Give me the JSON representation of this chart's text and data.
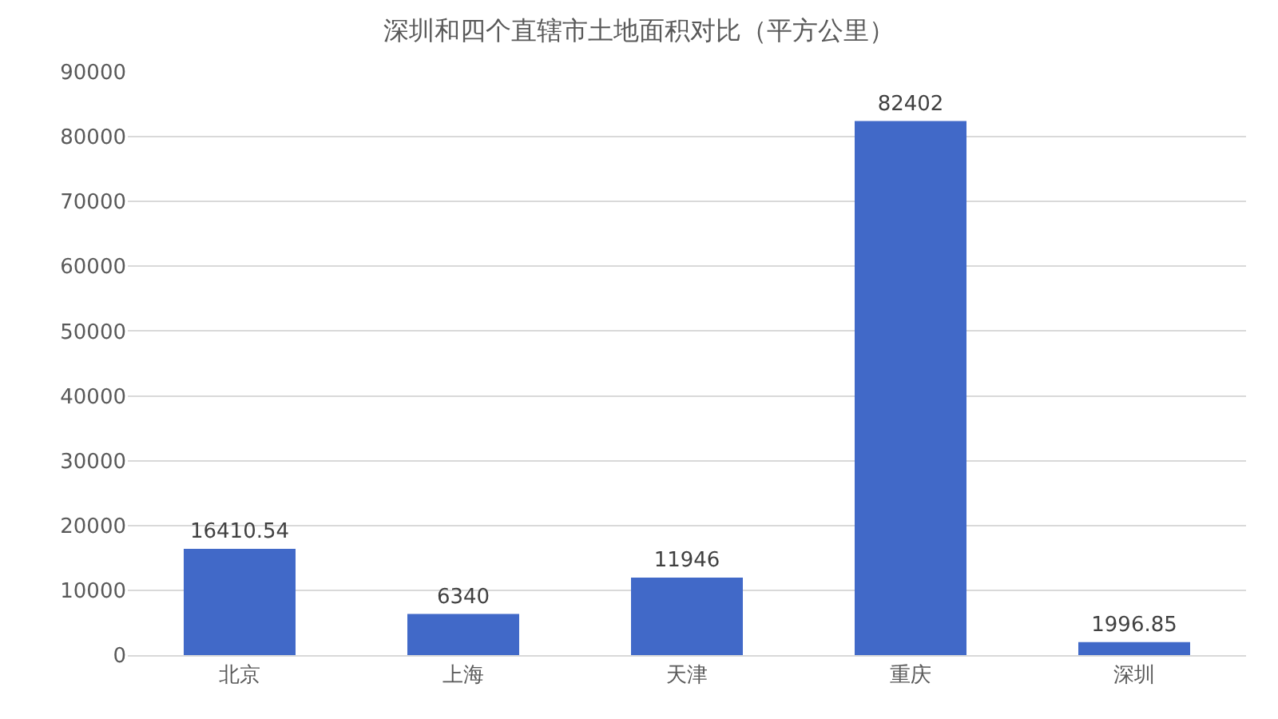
{
  "chart_data": {
    "type": "bar",
    "title": "深圳和四个直辖市土地面积对比（平方公里）",
    "categories": [
      "北京",
      "上海",
      "天津",
      "重庆",
      "深圳"
    ],
    "values": [
      16410.54,
      6340,
      11946,
      82402,
      1996.85
    ],
    "color": "#4169c8",
    "ylim": [
      0,
      90000
    ],
    "yticks": [
      0,
      10000,
      20000,
      30000,
      40000,
      50000,
      60000,
      70000,
      80000,
      90000
    ],
    "grid": "y",
    "data_labels": true
  }
}
